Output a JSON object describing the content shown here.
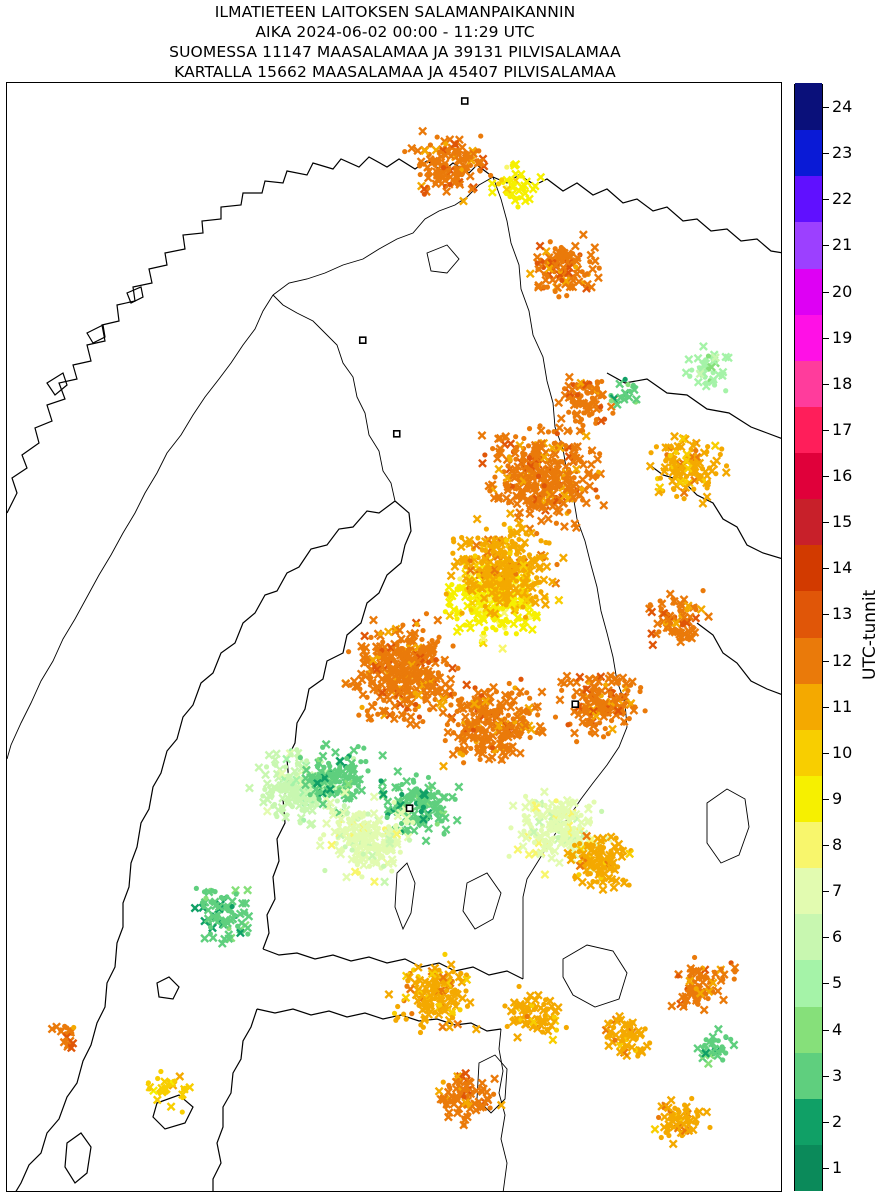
{
  "title": {
    "line1": "ILMATIETEEN LAITOKSEN SALAMANPAIKANNIN",
    "line2": "AIKA 2024-06-02 00:00 - 11:29 UTC",
    "line3": "SUOMESSA 11147 MAASALAMAA JA 39131 PILVISALAMAA",
    "line4": "KARTALLA 15662 MAASALAMAA JA 45407 PILVISALAMAA"
  },
  "colorbar": {
    "label": "UTC-tunnit",
    "ticks": [
      "1",
      "2",
      "3",
      "4",
      "5",
      "6",
      "7",
      "8",
      "9",
      "10",
      "11",
      "12",
      "13",
      "14",
      "15",
      "16",
      "17",
      "18",
      "19",
      "20",
      "21",
      "22",
      "23",
      "24"
    ],
    "colors": [
      "#0b8a5a",
      "#10a066",
      "#5fcf7e",
      "#86e07a",
      "#a5f3a8",
      "#c8f7b0",
      "#e2fbb0",
      "#f8f66c",
      "#f6f000",
      "#f8ce00",
      "#f4a900",
      "#ea7a0a",
      "#e05608",
      "#d23a00",
      "#c8202a",
      "#e0003a",
      "#ff1e5a",
      "#ff3c9c",
      "#ff10e6",
      "#de00f4",
      "#9c40ff",
      "#6010ff",
      "#0a1ad6",
      "#0a107a"
    ]
  },
  "lightning": {
    "cells": [
      {
        "lon": 25.3,
        "lat": 67.8,
        "hour": 11,
        "count": 140
      },
      {
        "lon": 26.8,
        "lat": 67.6,
        "hour": 8,
        "count": 40
      },
      {
        "lon": 27.9,
        "lat": 66.8,
        "hour": 11,
        "count": 120
      },
      {
        "lon": 28.4,
        "lat": 65.5,
        "hour": 11,
        "count": 80
      },
      {
        "lon": 27.5,
        "lat": 64.8,
        "hour": 11,
        "count": 360
      },
      {
        "lon": 30.8,
        "lat": 64.9,
        "hour": 10,
        "count": 120
      },
      {
        "lon": 26.3,
        "lat": 63.6,
        "hour": 8,
        "count": 260
      },
      {
        "lon": 26.5,
        "lat": 63.9,
        "hour": 10,
        "count": 300
      },
      {
        "lon": 24.2,
        "lat": 62.9,
        "hour": 11,
        "count": 380
      },
      {
        "lon": 26.2,
        "lat": 62.4,
        "hour": 11,
        "count": 260
      },
      {
        "lon": 28.8,
        "lat": 62.6,
        "hour": 11,
        "count": 160
      },
      {
        "lon": 30.6,
        "lat": 63.4,
        "hour": 11,
        "count": 80
      },
      {
        "lon": 21.8,
        "lat": 61.8,
        "hour": 5,
        "count": 200
      },
      {
        "lon": 22.6,
        "lat": 61.9,
        "hour": 2,
        "count": 120
      },
      {
        "lon": 24.5,
        "lat": 61.6,
        "hour": 2,
        "count": 140
      },
      {
        "lon": 23.3,
        "lat": 61.3,
        "hour": 6,
        "count": 220
      },
      {
        "lon": 27.8,
        "lat": 61.4,
        "hour": 6,
        "count": 200
      },
      {
        "lon": 28.8,
        "lat": 61.1,
        "hour": 10,
        "count": 120
      },
      {
        "lon": 19.9,
        "lat": 60.6,
        "hour": 2,
        "count": 80
      },
      {
        "lon": 24.9,
        "lat": 59.8,
        "hour": 10,
        "count": 140
      },
      {
        "lon": 27.2,
        "lat": 59.6,
        "hour": 10,
        "count": 80
      },
      {
        "lon": 29.4,
        "lat": 59.4,
        "hour": 10,
        "count": 60
      },
      {
        "lon": 31.2,
        "lat": 59.9,
        "hour": 11,
        "count": 80
      },
      {
        "lon": 31.5,
        "lat": 59.3,
        "hour": 2,
        "count": 30
      },
      {
        "lon": 25.6,
        "lat": 58.8,
        "hour": 11,
        "count": 80
      },
      {
        "lon": 30.6,
        "lat": 58.6,
        "hour": 10,
        "count": 60
      },
      {
        "lon": 18.6,
        "lat": 58.9,
        "hour": 9,
        "count": 30
      },
      {
        "lon": 16.2,
        "lat": 59.4,
        "hour": 11,
        "count": 20
      },
      {
        "lon": 31.3,
        "lat": 65.8,
        "hour": 4,
        "count": 40
      },
      {
        "lon": 29.4,
        "lat": 65.6,
        "hour": 2,
        "count": 20
      }
    ]
  },
  "stations": [
    {
      "lon": 25.6,
      "lat": 68.4
    },
    {
      "lon": 23.2,
      "lat": 66.1
    },
    {
      "lon": 24.0,
      "lat": 65.2
    },
    {
      "lon": 28.2,
      "lat": 62.6
    },
    {
      "lon": 24.3,
      "lat": 61.6
    }
  ]
}
